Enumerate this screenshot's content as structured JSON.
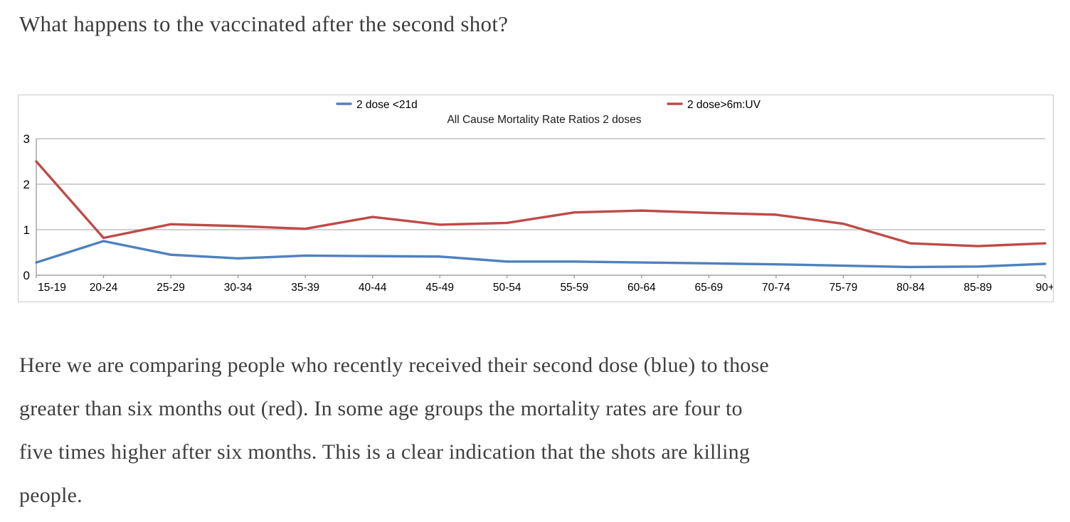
{
  "heading": "What happens to the vaccinated after the second shot?",
  "paragraph": {
    "lines": [
      "Here we are comparing people who recently received their second dose (blue) to those",
      "greater than six months out (red). In some age groups the mortality rates are four to",
      "five times higher after six months. This is a clear indication that the shots are killing",
      "people."
    ],
    "full_text": "Here we are comparing people who recently received their second dose (blue) to those greater than six months out (red). In some age groups the mortality rates are four to five times higher after six months. This is a clear indication that the shots are killing people."
  },
  "chart_data": {
    "type": "line",
    "title": "All Cause Mortality Rate Ratios 2 doses",
    "categories": [
      "15-19",
      "20-24",
      "25-29",
      "30-34",
      "35-39",
      "40-44",
      "45-49",
      "50-54",
      "55-59",
      "60-64",
      "65-69",
      "70-74",
      "75-79",
      "80-84",
      "85-89",
      "90+"
    ],
    "series": [
      {
        "name": "2 dose <21d",
        "color": "#4F81BD",
        "values": [
          0.28,
          0.75,
          0.45,
          0.37,
          0.43,
          0.42,
          0.41,
          0.3,
          0.3,
          0.28,
          0.26,
          0.24,
          0.21,
          0.18,
          0.19,
          0.25
        ]
      },
      {
        "name": "2 dose>6m:UV",
        "color": "#BE4B48",
        "values": [
          2.5,
          0.82,
          1.12,
          1.08,
          1.02,
          1.28,
          1.11,
          1.15,
          1.38,
          1.42,
          1.37,
          1.33,
          1.13,
          0.7,
          0.64,
          0.7
        ]
      }
    ],
    "xlabel": "",
    "ylabel": "",
    "ylim": [
      0,
      3
    ],
    "yticks": [
      0,
      1,
      2,
      3
    ],
    "grid": true,
    "legend_position": "top",
    "colors": {
      "gridline": "#b3b3b3",
      "axis": "#8f8f8f",
      "border": "#c9c9c9",
      "text": "#000000"
    }
  }
}
